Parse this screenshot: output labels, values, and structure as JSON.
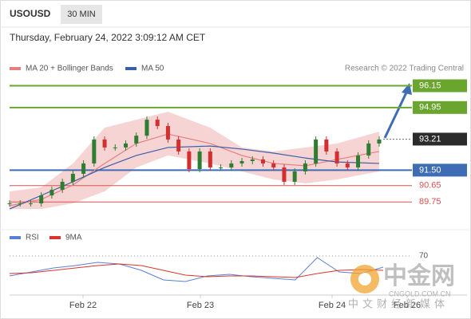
{
  "header": {
    "symbol": "USOUSD",
    "interval": "30 MIN",
    "datetime": "Thursday, February 24, 2022 3:09:12 AM CET",
    "source": "Research © 2022 Trading Central"
  },
  "watermark": {
    "title": "中金网",
    "site": "CNGOLD.COM.CN",
    "slogan": "中文财经新媒体"
  },
  "chart_data": [
    {
      "type": "candlestick",
      "closes": [
        89.67,
        89.67,
        89.67,
        90.11,
        90.42,
        90.86,
        91.3,
        91.87,
        93.19,
        92.75,
        92.75,
        92.97,
        93.4,
        94.28,
        93.93,
        93.19,
        92.53,
        91.56,
        92.53,
        91.65,
        91.65,
        91.87,
        92.0,
        92.09,
        91.87,
        91.65,
        90.86,
        91.43,
        91.87,
        93.19,
        92.53,
        91.87,
        91.65,
        92.31,
        92.97,
        93.19
      ],
      "up_color": "#2e7d32",
      "down_color": "#d32f2f",
      "series": [
        {
          "name": "MA 20 + Bollinger Bands",
          "color": "#e57f7f",
          "band_color": "#f7d4d4",
          "x": [
            0,
            3,
            6,
            9,
            12,
            15,
            19,
            22,
            25,
            28,
            31,
            35
          ],
          "values": [
            89.54,
            89.89,
            90.68,
            91.87,
            92.97,
            93.49,
            92.97,
            92.31,
            91.87,
            91.74,
            92.09,
            92.53
          ],
          "upper": [
            90.33,
            90.55,
            91.87,
            93.84,
            94.28,
            94.72,
            93.84,
            92.75,
            92.53,
            92.75,
            92.97,
            93.62
          ],
          "lower": [
            89.36,
            89.36,
            89.67,
            90.33,
            91.65,
            92.31,
            91.87,
            91.43,
            90.99,
            90.77,
            90.99,
            91.43
          ]
        },
        {
          "name": "MA 50",
          "color": "#3b5ea8",
          "x": [
            0,
            3,
            6,
            9,
            12,
            15,
            19,
            22,
            25,
            28,
            31,
            35
          ],
          "values": [
            89.36,
            90.11,
            90.86,
            91.65,
            92.31,
            92.75,
            92.83,
            92.66,
            92.44,
            92.17,
            91.95,
            91.87
          ]
        }
      ],
      "levels": [
        {
          "value": 96.15,
          "color": "#6aa52e",
          "tag": "fill"
        },
        {
          "value": 94.95,
          "color": "#6aa52e",
          "tag": "fill"
        },
        {
          "value": 93.21,
          "color": "#2b2b2b",
          "tag": "current"
        },
        {
          "value": 91.5,
          "label": "91.50",
          "color": "#3e6db5",
          "tag": "fill"
        },
        {
          "value": 90.65,
          "color": "#d9534f",
          "tag": "text"
        },
        {
          "value": 89.75,
          "color": "#d9534f",
          "tag": "text"
        }
      ],
      "ylim": [
        89.1,
        96.7
      ]
    },
    {
      "type": "line",
      "series": [
        {
          "name": "RSI",
          "color": "#5b7fd6",
          "values": [
            45,
            50,
            55,
            58,
            62,
            60,
            52,
            40,
            38,
            45,
            47,
            44,
            42,
            40,
            68,
            50,
            48,
            56
          ]
        },
        {
          "name": "9MA",
          "color": "#d9342b",
          "values": [
            48,
            49,
            52,
            55,
            58,
            60,
            58,
            52,
            46,
            44,
            45,
            45,
            44,
            43,
            48,
            52,
            53,
            52
          ]
        }
      ],
      "ylim": [
        20,
        80
      ],
      "yticks": [
        70
      ],
      "x_labels": [
        "Feb 22",
        "Feb 23",
        "Feb 24",
        "Feb 26"
      ]
    }
  ]
}
